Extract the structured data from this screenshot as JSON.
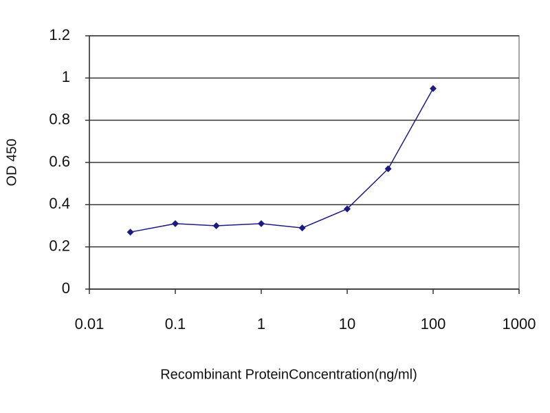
{
  "chart_data": {
    "type": "line",
    "xlabel": "Recombinant ProteinConcentration(ng/ml)",
    "ylabel": "OD 450",
    "x": [
      0.03,
      0.1,
      0.3,
      1,
      3,
      10,
      30,
      100
    ],
    "values": [
      0.27,
      0.31,
      0.3,
      0.31,
      0.29,
      0.38,
      0.57,
      0.95
    ],
    "color": "#1a1a80",
    "xscale": "log",
    "xlim": [
      0.01,
      1000
    ],
    "xticks": [
      0.01,
      0.1,
      1,
      10,
      100,
      1000
    ],
    "ylim": [
      0,
      1.2
    ],
    "yticks": [
      0,
      0.2,
      0.4,
      0.6,
      0.8,
      1,
      1.2
    ],
    "grid": true
  }
}
